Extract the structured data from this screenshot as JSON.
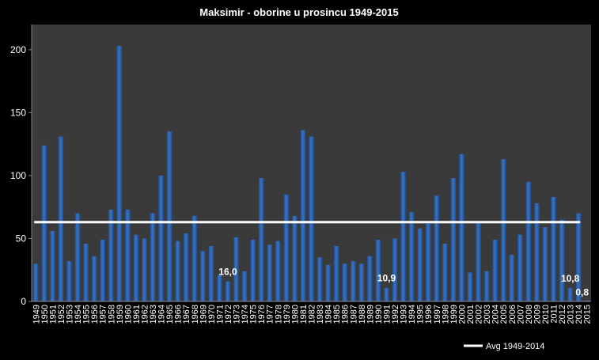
{
  "chart_data": {
    "type": "bar",
    "title": "Maksimir - oborine u prosincu 1949-2015",
    "categories": [
      "1949",
      "1950",
      "1951",
      "1952",
      "1953",
      "1954",
      "1955",
      "1956",
      "1957",
      "1958",
      "1959",
      "1960",
      "1961",
      "1962",
      "1963",
      "1964",
      "1965",
      "1966",
      "1967",
      "1968",
      "1969",
      "1970",
      "1971",
      "1972",
      "1973",
      "1974",
      "1975",
      "1976",
      "1977",
      "1978",
      "1979",
      "1980",
      "1981",
      "1982",
      "1983",
      "1984",
      "1985",
      "1986",
      "1987",
      "1988",
      "1989",
      "1990",
      "1991",
      "1992",
      "1993",
      "1994",
      "1995",
      "1996",
      "1997",
      "1998",
      "1999",
      "2000",
      "2001",
      "2002",
      "2003",
      "2004",
      "2005",
      "2006",
      "2007",
      "2008",
      "2009",
      "2010",
      "2011",
      "2012",
      "2013",
      "2014",
      "2015"
    ],
    "values": [
      30,
      124,
      56,
      131,
      32,
      70,
      46,
      36,
      49,
      73,
      203,
      73,
      53,
      50,
      70,
      100,
      135,
      48,
      54,
      68,
      40,
      44,
      21,
      16.0,
      51,
      24,
      49,
      98,
      45,
      48,
      85,
      68,
      136,
      131,
      35,
      29,
      44,
      30,
      32,
      30,
      36,
      49,
      10.9,
      50,
      103,
      71,
      58,
      62,
      84,
      46,
      98,
      117,
      23,
      62,
      24,
      49,
      113,
      37,
      53,
      95,
      78,
      59,
      83,
      65,
      10.8,
      70,
      0.8
    ],
    "ylim": [
      0,
      220
    ],
    "yticks": [
      0,
      50,
      100,
      150,
      200
    ],
    "average": {
      "label": "Avg 1949-2014",
      "value": 63
    },
    "annotations": [
      {
        "category": "1972",
        "text": "16,0"
      },
      {
        "category": "1991",
        "text": "10,9"
      },
      {
        "category": "2013",
        "text": "10,8"
      },
      {
        "category": "2015",
        "text": "0,8"
      }
    ],
    "colors": {
      "background": "#000000",
      "plot": "#3a3a3a",
      "bar": "#3a74c4",
      "bar_dark": "#1f4d8f",
      "avg_line": "#ffffff",
      "text": "#ffffff"
    },
    "grid": false,
    "legend": "bottom-right"
  }
}
